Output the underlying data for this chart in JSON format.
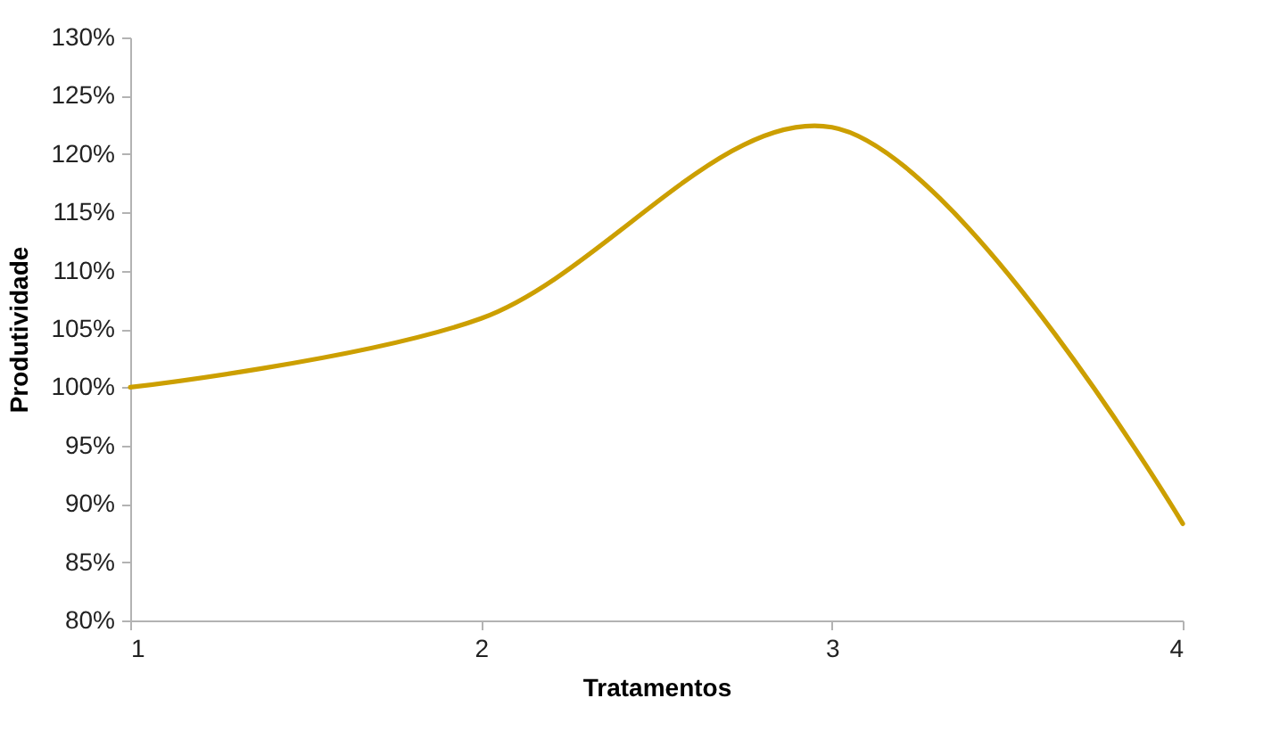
{
  "chart_data": {
    "type": "line",
    "xlabel": "Tratamentos",
    "ylabel": "Produtividade",
    "x": [
      1,
      2,
      3,
      4
    ],
    "series": [
      {
        "color": "#cc9f00",
        "values": [
          100,
          105.9,
          122.3,
          88.3
        ]
      }
    ],
    "xlim": [
      1,
      4
    ],
    "xticks": [
      1,
      2,
      3,
      4
    ],
    "ylim": [
      80,
      130
    ],
    "yticks": [
      {
        "value": 80,
        "label": "80%"
      },
      {
        "value": 85,
        "label": "85%"
      },
      {
        "value": 90,
        "label": "90%"
      },
      {
        "value": 95,
        "label": "95%"
      },
      {
        "value": 100,
        "label": "100%"
      },
      {
        "value": 105,
        "label": "105%"
      },
      {
        "value": 110,
        "label": "110%"
      },
      {
        "value": 115,
        "label": "115%"
      },
      {
        "value": 120,
        "label": "120%"
      },
      {
        "value": 125,
        "label": "125%"
      },
      {
        "value": 130,
        "label": "130%"
      }
    ],
    "grid": false,
    "marker": "none"
  }
}
